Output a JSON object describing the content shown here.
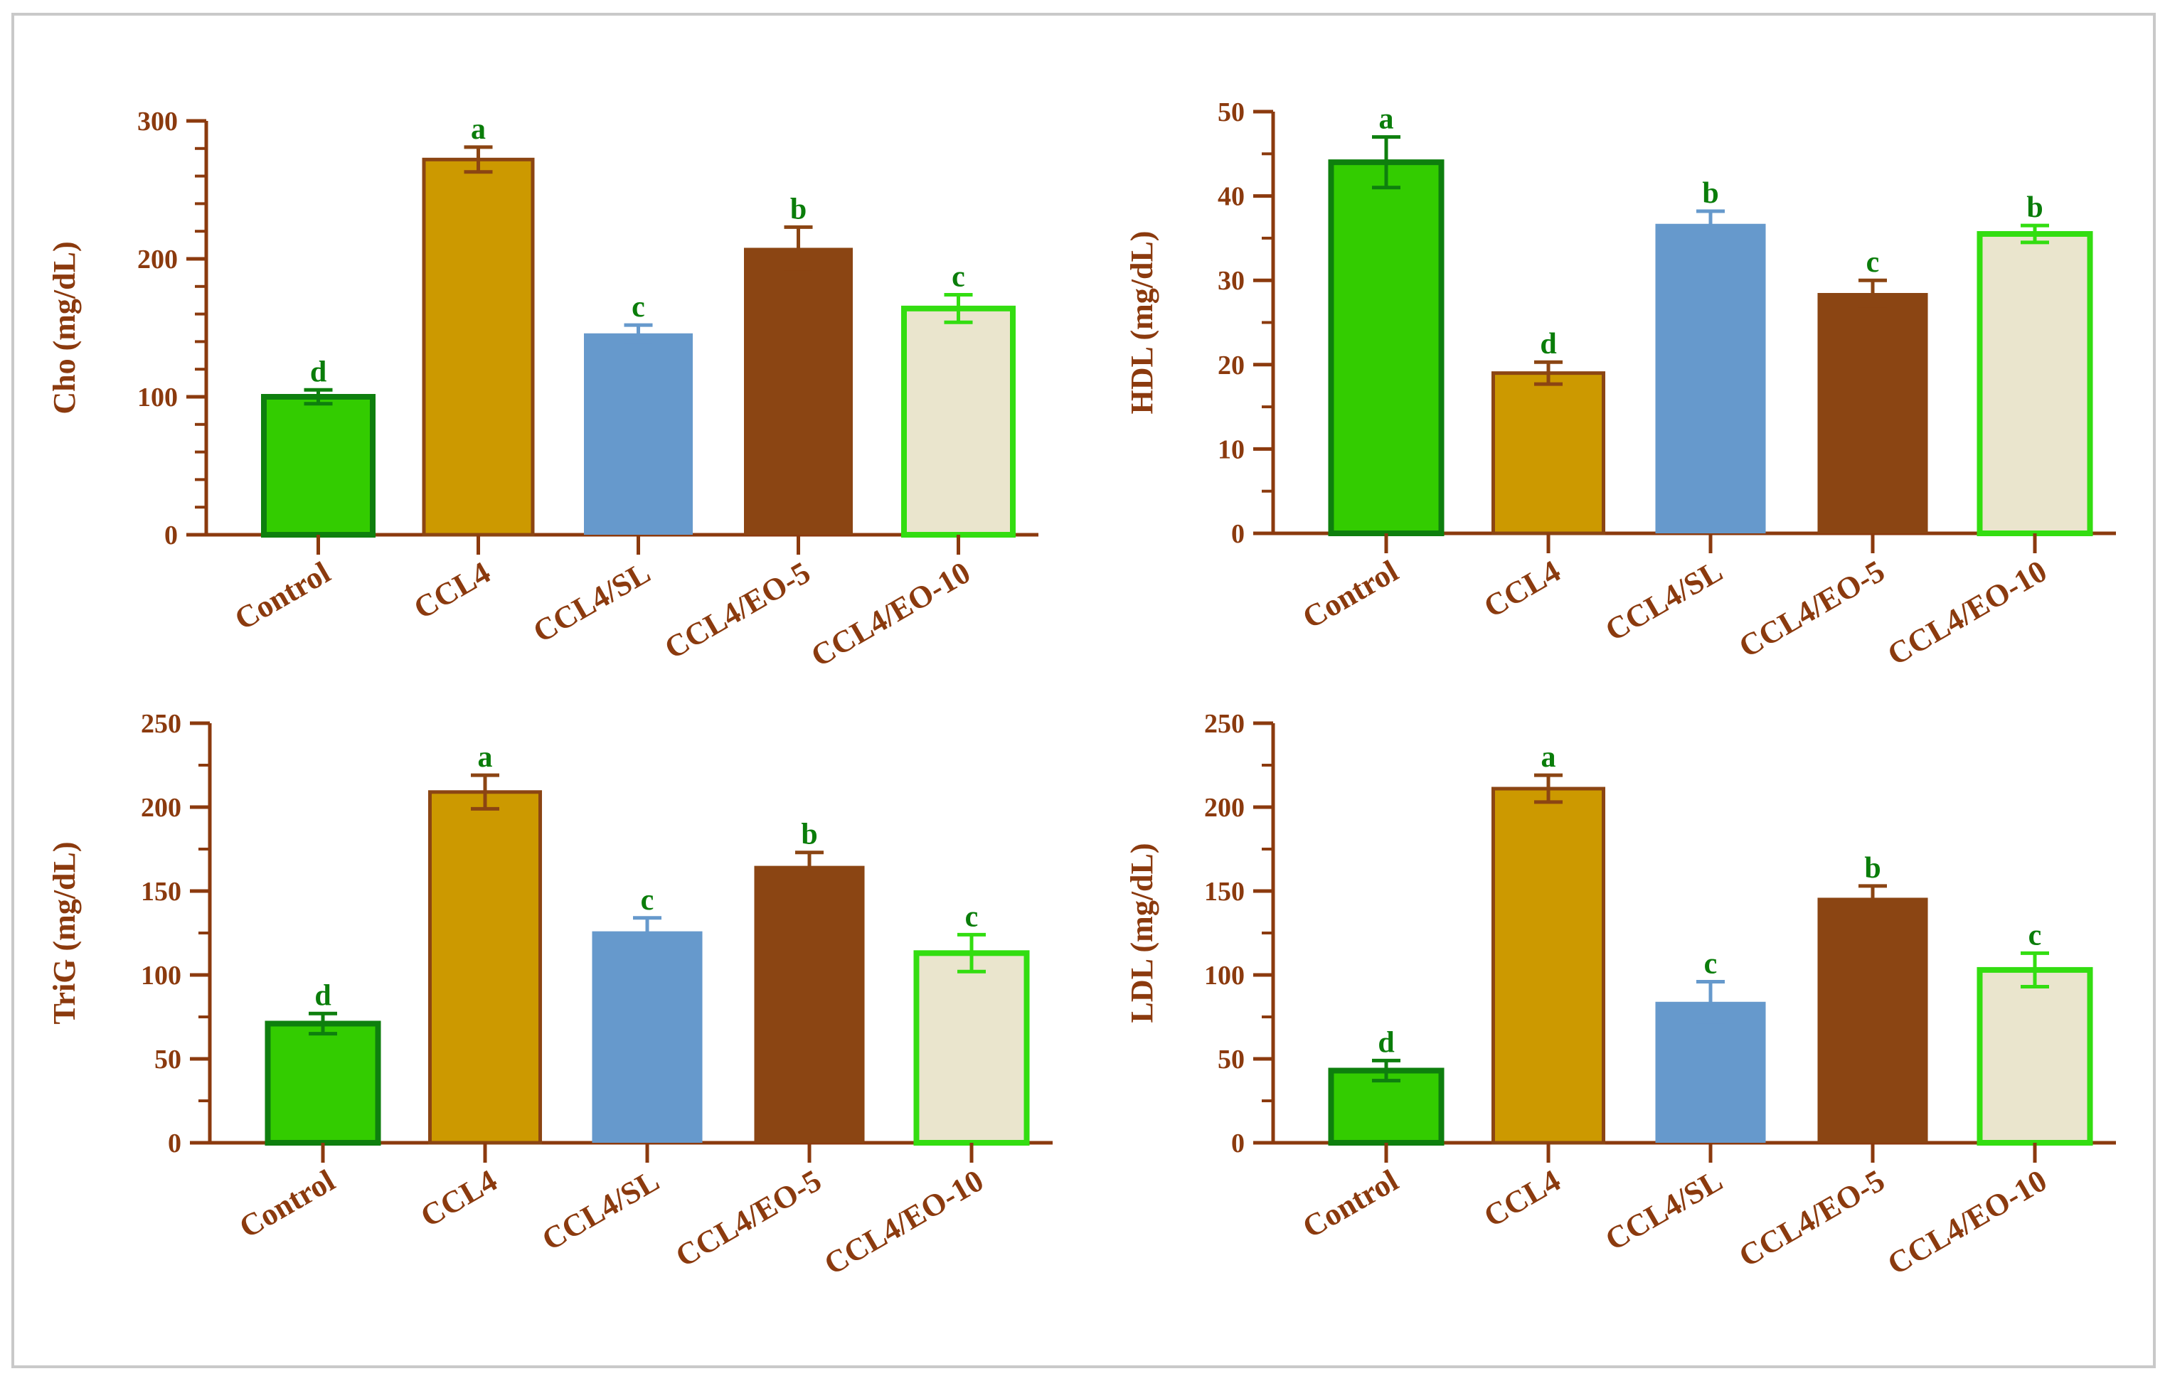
{
  "figure": {
    "panels_order": [
      "Cho",
      "HDL",
      "TriG",
      "LDL"
    ]
  },
  "series_styles": [
    {
      "group": "Control",
      "fill": "#33CC00",
      "stroke": "#0E7F0E"
    },
    {
      "group": "CCL4",
      "fill": "#CC9900",
      "stroke": "#8B4513"
    },
    {
      "group": "CCL4/SL",
      "fill": "#6699CC",
      "stroke": "#6699CC"
    },
    {
      "group": "CCL4/EO-5",
      "fill": "#8B4513",
      "stroke": "#8B4513"
    },
    {
      "group": "CCL4/EO-10",
      "fill": "#EAE5CD",
      "stroke": "#33DD11"
    }
  ],
  "colors": {
    "axis": "#8B3A0E",
    "label": "#8B3A0E",
    "significance": "#0A7D0A",
    "frame": "#C9C9C9"
  },
  "chart_data": [
    {
      "id": "cho",
      "type": "bar",
      "ylabel": "Cho (mg/dL)",
      "categories": [
        "Control",
        "CCL4",
        "CCL4/SL",
        "CCL4/EO-5",
        "CCL4/EO-10"
      ],
      "values": [
        100,
        272,
        146,
        208,
        164
      ],
      "errors": [
        5,
        9,
        6,
        15,
        10
      ],
      "significance": [
        "d",
        "a",
        "c",
        "b",
        "c"
      ],
      "ylim": [
        0,
        300
      ],
      "yticks": [
        0,
        100,
        200,
        300
      ],
      "ytick_labels": [
        "0",
        "100",
        "200",
        "300"
      ],
      "minor_ticks": 5
    },
    {
      "id": "hdl",
      "type": "bar",
      "ylabel": "HDL (mg/dL)",
      "categories": [
        "Control",
        "CCL4",
        "CCL4/SL",
        "CCL4/EO-5",
        "CCL4/EO-10"
      ],
      "values": [
        44,
        19,
        36.7,
        28.5,
        35.5
      ],
      "errors": [
        3,
        1.3,
        1.5,
        1.5,
        1
      ],
      "significance": [
        "a",
        "d",
        "b",
        "c",
        "b"
      ],
      "ylim": [
        0,
        50
      ],
      "yticks": [
        0,
        10,
        20,
        30,
        40,
        50
      ],
      "ytick_labels": [
        "0",
        "10",
        "20",
        "30",
        "40",
        "50"
      ],
      "minor_ticks": 2
    },
    {
      "id": "trig",
      "type": "bar",
      "ylabel": "TriG (mg/dL)",
      "categories": [
        "Control",
        "CCL4",
        "CCL4/SL",
        "CCL4/EO-5",
        "CCL4/EO-10"
      ],
      "values": [
        71,
        209,
        126,
        165,
        113
      ],
      "errors": [
        6,
        10,
        8,
        8,
        11
      ],
      "significance": [
        "d",
        "a",
        "c",
        "b",
        "c"
      ],
      "ylim": [
        0,
        250
      ],
      "yticks": [
        0,
        50,
        100,
        150,
        200,
        250
      ],
      "ytick_labels": [
        "0",
        "50",
        "100",
        "150",
        "200",
        "250"
      ],
      "minor_ticks": 2
    },
    {
      "id": "ldl",
      "type": "bar",
      "ylabel": "LDL (mg/dL)",
      "categories": [
        "Control",
        "CCL4",
        "CCL4/SL",
        "CCL4/EO-5",
        "CCL4/EO-10"
      ],
      "values": [
        43,
        211,
        84,
        146,
        103
      ],
      "errors": [
        6,
        8,
        12,
        7,
        10
      ],
      "significance": [
        "d",
        "a",
        "c",
        "b",
        "c"
      ],
      "ylim": [
        0,
        250
      ],
      "yticks": [
        0,
        50,
        100,
        150,
        200,
        250
      ],
      "ytick_labels": [
        "0",
        "50",
        "100",
        "150",
        "200",
        "250"
      ],
      "minor_ticks": 2
    }
  ]
}
